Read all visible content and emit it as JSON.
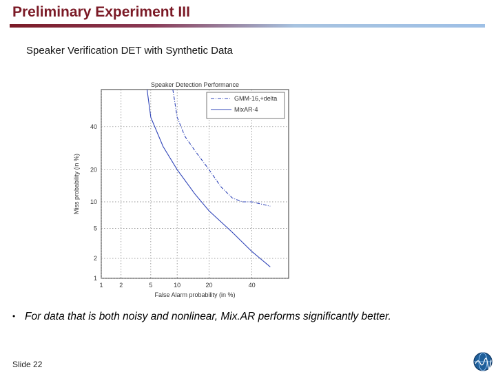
{
  "slide": {
    "title": "Preliminary Experiment III",
    "subtitle": "Speaker Verification DET with Synthetic Data",
    "bullet_marker": "•",
    "bullet_text": "For data that is both noisy and nonlinear, Mix.AR performs significantly better.",
    "slide_number": "Slide 22"
  },
  "colors": {
    "title": "#7b1a26",
    "accent_blue": "#2f44b8"
  },
  "chart_data": {
    "type": "line",
    "title": "Speaker Detection Performance",
    "xlabel": "False Alarm probability (in %)",
    "ylabel": "Miss probability (in %)",
    "scale": "normal-deviate",
    "xlim": [
      1,
      60
    ],
    "ylim": [
      1,
      60
    ],
    "xticks": [
      1,
      2,
      5,
      10,
      20,
      40
    ],
    "xtick_labels": [
      "1",
      "2",
      "5",
      "10",
      "20",
      "40"
    ],
    "yticks": [
      1,
      2,
      5,
      10,
      20,
      40
    ],
    "ytick_labels": [
      "1",
      "2",
      "5",
      "10",
      "20",
      "40"
    ],
    "grid": true,
    "legend_position": "top-right",
    "series": [
      {
        "name": "GMM-16,+delta",
        "style": "dash-dot",
        "x": [
          9,
          10,
          12,
          15,
          20,
          25,
          30,
          35,
          40,
          50
        ],
        "y": [
          60,
          45,
          35,
          28,
          20,
          14,
          11,
          10,
          10,
          9
        ]
      },
      {
        "name": "MixAR-4",
        "style": "solid",
        "x": [
          4.5,
          5,
          7,
          10,
          15,
          20,
          30,
          40,
          50
        ],
        "y": [
          60,
          45,
          30,
          20,
          12,
          8,
          4.5,
          2.5,
          1.5
        ]
      }
    ]
  }
}
